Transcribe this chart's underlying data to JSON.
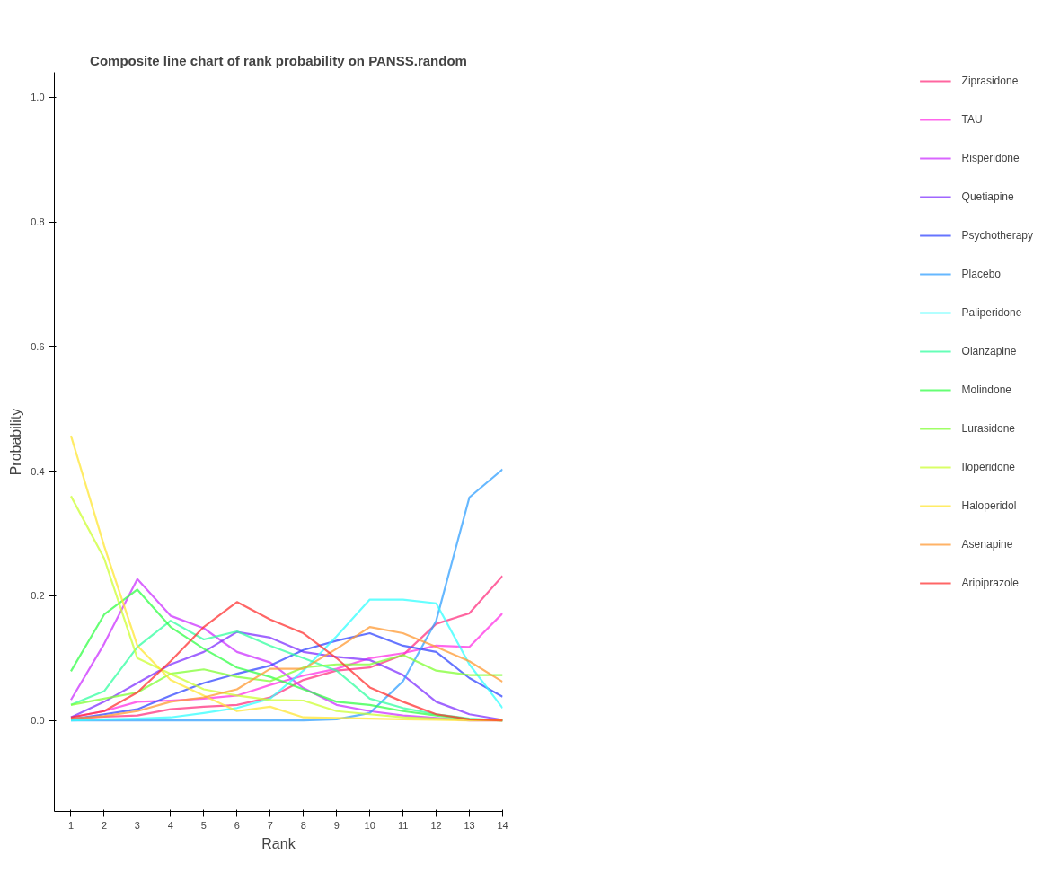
{
  "chart_data": {
    "type": "line",
    "title": "Composite line chart of rank probability on PANSS.random",
    "xlabel": "Rank",
    "ylabel": "Probability",
    "x": [
      1,
      2,
      3,
      4,
      5,
      6,
      7,
      8,
      9,
      10,
      11,
      12,
      13,
      14
    ],
    "xlim": [
      0.5,
      14
    ],
    "xticks": [
      1,
      2,
      3,
      4,
      5,
      6,
      7,
      8,
      9,
      10,
      11,
      12,
      13,
      14
    ],
    "ylim": [
      -0.146,
      1.04
    ],
    "yticks": [
      {
        "value": 0,
        "label": "0.0"
      },
      0.2,
      0.4,
      0.6,
      0.8,
      {
        "value": 1,
        "label": "1.0"
      }
    ],
    "grid": false,
    "legend": "right",
    "marker": "none",
    "line_style": "solid",
    "series": [
      {
        "name": "Ziprasidone",
        "color": "#ff3380",
        "values": [
          0.003,
          0.006,
          0.008,
          0.018,
          0.022,
          0.025,
          0.037,
          0.065,
          0.08,
          0.085,
          0.105,
          0.155,
          0.172,
          0.232
        ]
      },
      {
        "name": "TAU",
        "color": "#ff33e6",
        "values": [
          0.005,
          0.015,
          0.03,
          0.032,
          0.035,
          0.04,
          0.057,
          0.072,
          0.083,
          0.1,
          0.108,
          0.12,
          0.118,
          0.172
        ]
      },
      {
        "name": "Risperidone",
        "color": "#cc33ff",
        "values": [
          0.033,
          0.123,
          0.227,
          0.168,
          0.148,
          0.11,
          0.093,
          0.052,
          0.025,
          0.015,
          0.008,
          0.004,
          null,
          0
        ]
      },
      {
        "name": "Quetiapine",
        "color": "#8033ff",
        "values": [
          0.005,
          0.03,
          0.06,
          0.09,
          0.11,
          0.142,
          0.133,
          0.11,
          0.102,
          0.097,
          0.073,
          0.03,
          0.01,
          0.001
        ]
      },
      {
        "name": "Psychotherapy",
        "color": "#3347ff",
        "values": [
          0.002,
          0.01,
          0.018,
          0.04,
          0.06,
          0.075,
          0.088,
          0.113,
          0.128,
          0.14,
          0.12,
          0.11,
          0.068,
          0.038
        ]
      },
      {
        "name": "Placebo",
        "color": "#33a0ff",
        "values": [
          0,
          0,
          0,
          0,
          0,
          0,
          0,
          0,
          0.002,
          0.012,
          0.063,
          0.16,
          0.358,
          0.403
        ]
      },
      {
        "name": "Paliperidone",
        "color": "#33ffff",
        "values": [
          0,
          0.002,
          0.003,
          0.005,
          0.012,
          0.02,
          0.035,
          0.08,
          0.135,
          0.194,
          0.194,
          0.188,
          0.09,
          0.02
        ]
      },
      {
        "name": "Olanzapine",
        "color": "#33ffa0",
        "values": [
          0.025,
          0.047,
          0.118,
          0.16,
          0.13,
          0.143,
          0.12,
          0.1,
          0.08,
          0.035,
          0.02,
          0.01,
          0.003,
          0
        ]
      },
      {
        "name": "Molindone",
        "color": "#33ff47",
        "values": [
          0.079,
          0.17,
          0.21,
          0.15,
          0.115,
          0.085,
          0.07,
          0.05,
          0.03,
          0.025,
          0.015,
          0.008,
          0.002,
          0
        ]
      },
      {
        "name": "Lurasidone",
        "color": "#80ff33",
        "values": [
          0.025,
          0.035,
          0.045,
          0.075,
          0.082,
          0.07,
          0.063,
          0.085,
          0.09,
          0.09,
          0.105,
          0.08,
          0.073,
          0.073
        ]
      },
      {
        "name": "Iloperidone",
        "color": "#ccff33",
        "values": [
          0.36,
          0.26,
          0.1,
          0.075,
          0.05,
          0.04,
          0.033,
          0.032,
          0.015,
          0.01,
          0.005,
          0.003,
          0.001,
          0
        ]
      },
      {
        "name": "Haloperidol",
        "color": "#ffe633",
        "values": [
          0.457,
          0.28,
          0.12,
          0.065,
          0.04,
          0.015,
          0.022,
          0.005,
          0.004,
          0.003,
          0.002,
          0.001,
          0,
          0
        ]
      },
      {
        "name": "Asenapine",
        "color": "#ff9933",
        "values": [
          0.003,
          0.007,
          0.015,
          0.03,
          0.037,
          0.05,
          0.083,
          0.083,
          0.115,
          0.15,
          0.14,
          0.118,
          0.095,
          0.062
        ]
      },
      {
        "name": "Aripiprazole",
        "color": "#ff3333",
        "values": [
          0.005,
          0.015,
          0.045,
          0.095,
          0.15,
          0.19,
          0.162,
          0.14,
          0.1,
          0.053,
          0.03,
          0.01,
          0.002,
          0
        ]
      }
    ]
  }
}
